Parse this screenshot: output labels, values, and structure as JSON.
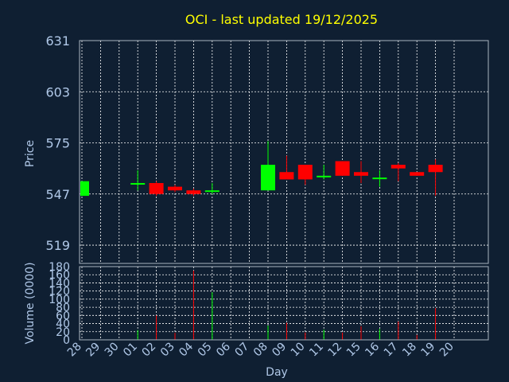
{
  "title": "OCI - last updated 19/12/2025",
  "colors": {
    "background": "#0f1f32",
    "up": "#00ff00",
    "down": "#ff0000",
    "text": "#b0c8e8",
    "title": "#ffff00",
    "grid": "#ffffff"
  },
  "chart_data": {
    "type": "candlestick",
    "grid": true,
    "price_axis": {
      "label": "Price",
      "ticks": [
        519,
        547,
        575,
        603,
        631
      ],
      "ylim": [
        509,
        631
      ]
    },
    "volume_axis": {
      "label": "Volume (0000)",
      "ticks": [
        0,
        20,
        40,
        60,
        80,
        100,
        120,
        140,
        160,
        180
      ],
      "ylim": [
        0,
        180
      ]
    },
    "x_axis": {
      "label": "Day",
      "ticks": [
        "28",
        "29",
        "30",
        "01",
        "02",
        "03",
        "04",
        "05",
        "06",
        "07",
        "08",
        "09",
        "10",
        "11",
        "12",
        "15",
        "16",
        "17",
        "18",
        "19",
        "20"
      ]
    },
    "candles": [
      {
        "day": "28",
        "open": 546,
        "close": 554,
        "high": 554,
        "low": 546,
        "volume": 0
      },
      {
        "day": "01",
        "open": 553,
        "close": 553,
        "high": 560,
        "low": 549,
        "volume": 24
      },
      {
        "day": "02",
        "open": 553,
        "close": 547,
        "high": 554,
        "low": 546,
        "volume": 60
      },
      {
        "day": "03",
        "open": 551,
        "close": 549,
        "high": 552,
        "low": 548,
        "volume": 17
      },
      {
        "day": "04",
        "open": 549,
        "close": 547,
        "high": 550,
        "low": 546,
        "volume": 170
      },
      {
        "day": "05",
        "open": 549,
        "close": 549,
        "high": 553,
        "low": 547,
        "volume": 117
      },
      {
        "day": "08",
        "open": 549,
        "close": 563,
        "high": 576,
        "low": 549,
        "volume": 35
      },
      {
        "day": "09",
        "open": 559,
        "close": 555,
        "high": 568,
        "low": 555,
        "volume": 42
      },
      {
        "day": "10",
        "open": 563,
        "close": 555,
        "high": 563,
        "low": 552,
        "volume": 18
      },
      {
        "day": "11",
        "open": 557,
        "close": 557,
        "high": 563,
        "low": 555,
        "volume": 25
      },
      {
        "day": "12",
        "open": 565,
        "close": 557,
        "high": 565,
        "low": 557,
        "volume": 18
      },
      {
        "day": "15",
        "open": 559,
        "close": 557,
        "high": 565,
        "low": 553,
        "volume": 33
      },
      {
        "day": "16",
        "open": 556,
        "close": 556,
        "high": 560,
        "low": 551,
        "volume": 27
      },
      {
        "day": "17",
        "open": 563,
        "close": 561,
        "high": 564,
        "low": 554,
        "volume": 45
      },
      {
        "day": "18",
        "open": 559,
        "close": 557,
        "high": 559,
        "low": 557,
        "volume": 12
      },
      {
        "day": "19",
        "open": 563,
        "close": 559,
        "high": 566,
        "low": 546,
        "volume": 78
      }
    ]
  }
}
